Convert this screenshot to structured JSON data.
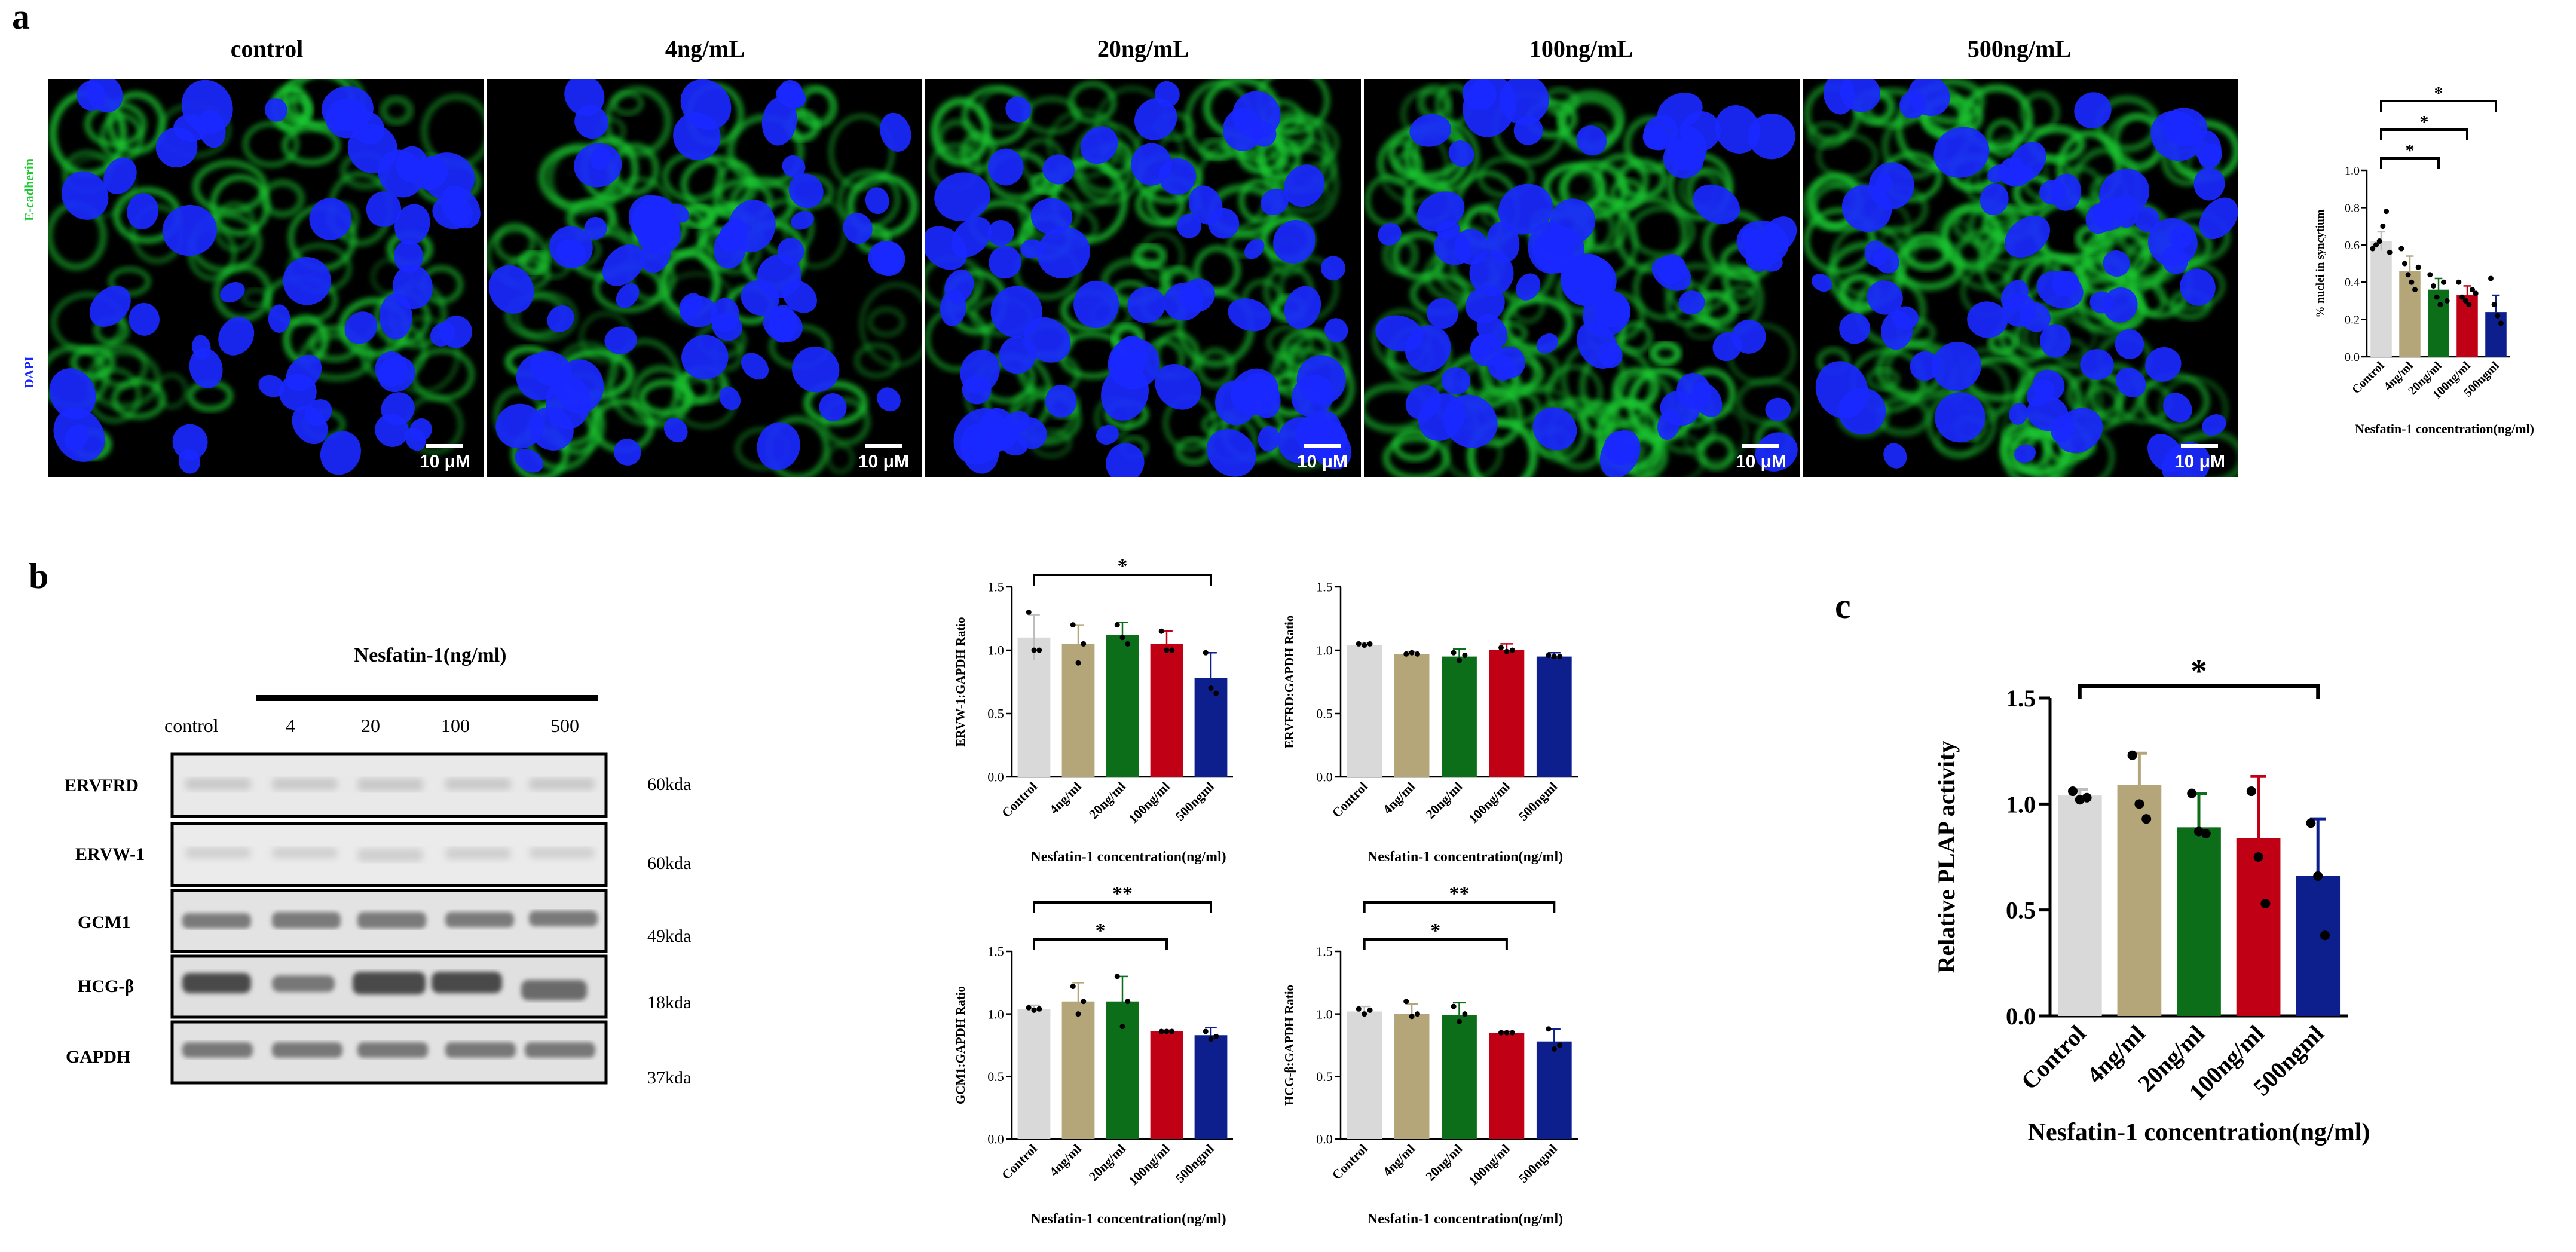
{
  "panel_a": {
    "letter": "a",
    "column_titles": [
      "control",
      "4ng/mL",
      "20ng/mL",
      "100ng/mL",
      "500ng/mL"
    ],
    "stain_labels": {
      "green": "E-cadherin",
      "blue": "DAPI"
    },
    "scale_label": "10 μM",
    "colors": {
      "green": "#1ec832",
      "blue": "#1a28ff"
    }
  },
  "panel_b": {
    "letter": "b",
    "blot_title": "Nesfatin-1(ng/ml)",
    "lanes": [
      "control",
      "4",
      "20",
      "100",
      "500"
    ],
    "rows": [
      {
        "name": "ERVFRD",
        "kda": "60kda"
      },
      {
        "name": "ERVW-1",
        "kda": "60kda"
      },
      {
        "name": "GCM1",
        "kda": "49kda"
      },
      {
        "name": "HCG-β",
        "kda": "18kda"
      },
      {
        "name": "GAPDH",
        "kda": "37kda"
      }
    ]
  },
  "panel_c": {
    "letter": "c"
  },
  "chart_data": [
    {
      "type": "bar",
      "panel": "a",
      "categories": [
        "Control",
        "4ng/ml",
        "20ng/ml",
        "100ng/ml",
        "500ngml"
      ],
      "values": [
        0.62,
        0.46,
        0.36,
        0.33,
        0.24
      ],
      "errors": [
        0.05,
        0.08,
        0.06,
        0.05,
        0.09
      ],
      "points": [
        [
          0.58,
          0.6,
          0.62,
          0.7,
          0.78,
          0.56
        ],
        [
          0.58,
          0.5,
          0.44,
          0.4,
          0.36,
          0.48
        ],
        [
          0.44,
          0.38,
          0.32,
          0.28,
          0.4,
          0.3
        ],
        [
          0.4,
          0.32,
          0.3,
          0.28,
          0.36,
          0.34
        ],
        [
          0.42,
          0.28,
          0.22,
          0.18
        ]
      ],
      "ylabel": "% nuclei in syncytium",
      "xlabel": "Nesfatin-1 concentration(ng/ml)",
      "ylim": [
        0.0,
        1.0
      ],
      "yticks": [
        "0.0",
        "0.2",
        "0.4",
        "0.6",
        "0.8",
        "1.0"
      ],
      "significance": [
        {
          "from": 0,
          "to": 2,
          "label": "*"
        },
        {
          "from": 0,
          "to": 3,
          "label": "*"
        },
        {
          "from": 0,
          "to": 4,
          "label": "*"
        }
      ]
    },
    {
      "type": "bar",
      "panel": "b",
      "categories": [
        "Control",
        "4ng/ml",
        "20ng/ml",
        "100ng/ml",
        "500ngml"
      ],
      "values": [
        1.1,
        1.05,
        1.12,
        1.05,
        0.78
      ],
      "errors": [
        0.18,
        0.15,
        0.1,
        0.1,
        0.2
      ],
      "points": [
        [
          1.3,
          1.0,
          1.0
        ],
        [
          1.2,
          0.9,
          1.05
        ],
        [
          1.2,
          1.1,
          1.05
        ],
        [
          1.15,
          1.0,
          1.0
        ],
        [
          0.98,
          0.7,
          0.66
        ]
      ],
      "ylabel": "ERVW-1:GAPDH Ratio",
      "xlabel": "Nesfatin-1 concentration(ng/ml)",
      "ylim": [
        0.0,
        1.5
      ],
      "yticks": [
        "0.0",
        "0.5",
        "1.0",
        "1.5"
      ],
      "significance": [
        {
          "from": 0,
          "to": 4,
          "label": "*"
        }
      ]
    },
    {
      "type": "bar",
      "panel": "b",
      "categories": [
        "Control",
        "4ng/ml",
        "20ng/ml",
        "100ng/ml",
        "500ngml"
      ],
      "values": [
        1.04,
        0.97,
        0.95,
        1.0,
        0.95
      ],
      "errors": [
        0.02,
        0.02,
        0.06,
        0.05,
        0.03
      ],
      "points": [
        [
          1.05,
          1.04,
          1.05
        ],
        [
          0.97,
          0.98,
          0.97
        ],
        [
          0.98,
          0.92,
          0.96
        ],
        [
          1.02,
          0.99,
          1.0
        ],
        [
          0.96,
          0.95,
          0.95
        ]
      ],
      "ylabel": "ERVFRD:GAPDH Ratio",
      "xlabel": "Nesfatin-1 concentration(ng/ml)",
      "ylim": [
        0.0,
        1.5
      ],
      "yticks": [
        "0.0",
        "0.5",
        "1.0",
        "1.5"
      ],
      "significance": []
    },
    {
      "type": "bar",
      "panel": "b",
      "categories": [
        "Control",
        "4ng/ml",
        "20ng/ml",
        "100ng/ml",
        "500ngml"
      ],
      "values": [
        1.04,
        1.1,
        1.1,
        0.86,
        0.83
      ],
      "errors": [
        0.03,
        0.15,
        0.2,
        0.01,
        0.06
      ],
      "points": [
        [
          1.05,
          1.03,
          1.04
        ],
        [
          1.22,
          1.0,
          1.1
        ],
        [
          1.3,
          0.9,
          1.1
        ],
        [
          0.86,
          0.86,
          0.86
        ],
        [
          0.86,
          0.8,
          0.82
        ]
      ],
      "ylabel": "GCM1:GAPDH Ratio",
      "xlabel": "Nesfatin-1 concentration(ng/ml)",
      "ylim": [
        0.0,
        1.5
      ],
      "yticks": [
        "0.0",
        "0.5",
        "1.0",
        "1.5"
      ],
      "significance": [
        {
          "from": 0,
          "to": 3,
          "label": "*"
        },
        {
          "from": 0,
          "to": 4,
          "label": "**"
        }
      ]
    },
    {
      "type": "bar",
      "panel": "b",
      "categories": [
        "Control",
        "4ng/ml",
        "20ng/ml",
        "100ng/ml",
        "500ngml"
      ],
      "values": [
        1.02,
        1.0,
        0.99,
        0.85,
        0.78
      ],
      "errors": [
        0.04,
        0.08,
        0.1,
        0.01,
        0.1
      ],
      "points": [
        [
          1.04,
          1.0,
          1.03
        ],
        [
          1.1,
          0.98,
          1.0
        ],
        [
          1.06,
          0.94,
          1.0
        ],
        [
          0.85,
          0.85,
          0.85
        ],
        [
          0.88,
          0.72,
          0.75
        ]
      ],
      "ylabel": "HCG-β:GAPDH Ratio",
      "xlabel": "Nesfatin-1 concentration(ng/ml)",
      "ylim": [
        0.0,
        1.5
      ],
      "yticks": [
        "0.0",
        "0.5",
        "1.0",
        "1.5"
      ],
      "significance": [
        {
          "from": 0,
          "to": 3,
          "label": "*"
        },
        {
          "from": 0,
          "to": 4,
          "label": "**"
        }
      ]
    },
    {
      "type": "bar",
      "panel": "c",
      "categories": [
        "Control",
        "4ng/ml",
        "20ng/ml",
        "100ng/ml",
        "500ngml"
      ],
      "values": [
        1.04,
        1.09,
        0.89,
        0.84,
        0.66
      ],
      "errors": [
        0.03,
        0.15,
        0.16,
        0.29,
        0.27
      ],
      "points": [
        [
          1.06,
          1.02,
          1.03
        ],
        [
          1.23,
          1.0,
          0.93
        ],
        [
          1.05,
          0.87,
          0.86
        ],
        [
          1.06,
          0.75,
          0.53
        ],
        [
          0.91,
          0.66,
          0.38
        ]
      ],
      "ylabel": "Relative PLAP activity",
      "xlabel": "Nesfatin-1 concentration(ng/ml)",
      "ylim": [
        0.0,
        1.5
      ],
      "yticks": [
        "0.0",
        "0.5",
        "1.0",
        "1.5"
      ],
      "significance": [
        {
          "from": 0,
          "to": 4,
          "label": "*"
        }
      ]
    }
  ],
  "bar_colors": [
    "#d9d9d9",
    "#b5a67a",
    "#0d6e1a",
    "#c00014",
    "#0d1f8c"
  ]
}
